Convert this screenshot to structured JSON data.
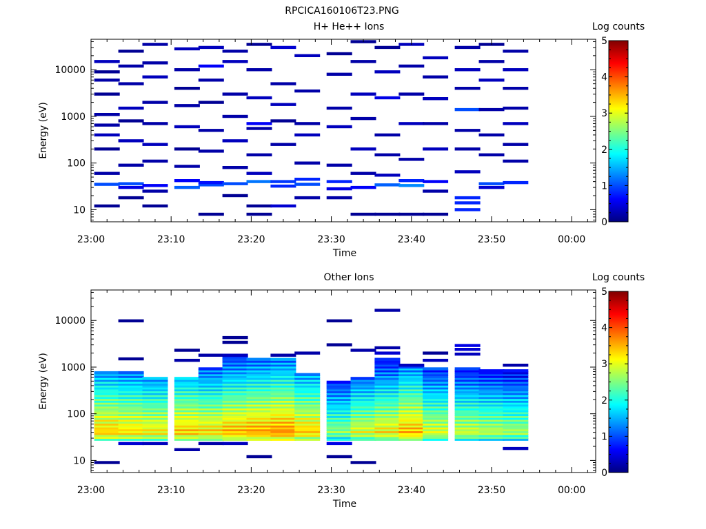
{
  "figure_title": "RPCICA160106T23.PNG",
  "chart_data": [
    {
      "type": "heatmap",
      "title": "H+ He++ Ions",
      "xlabel": "Time",
      "ylabel": "Energy (eV)",
      "y_scale": "log",
      "y_range": [
        5.5,
        45000
      ],
      "x_range": [
        "23:00",
        "00:03"
      ],
      "x_ticks": [
        "23:00",
        "23:10",
        "23:20",
        "23:30",
        "23:40",
        "23:50",
        "00:00"
      ],
      "y_ticks": [
        10,
        100,
        1000,
        10000
      ],
      "y_tick_labels": [
        "10",
        "100",
        "1000",
        "10000"
      ],
      "colorbar": {
        "label": "Log counts",
        "range": [
          0,
          5
        ],
        "ticks": [
          "0",
          "1",
          "2",
          "3",
          "4",
          "5"
        ]
      },
      "time_bins": [
        "23:02",
        "23:05",
        "23:08",
        "23:12",
        "23:15",
        "23:18",
        "23:21",
        "23:24",
        "23:27",
        "23:31",
        "23:34",
        "23:37",
        "23:40",
        "23:43",
        "23:47",
        "23:50",
        "23:53"
      ],
      "cells": [
        [
          0,
          12,
          0.1
        ],
        [
          0,
          35,
          1.0
        ],
        [
          0,
          60,
          0.2
        ],
        [
          0,
          200,
          0.1
        ],
        [
          0,
          400,
          0.3
        ],
        [
          0,
          650,
          0.2
        ],
        [
          0,
          1100,
          0.2
        ],
        [
          0,
          3000,
          0.1
        ],
        [
          0,
          6000,
          0.2
        ],
        [
          0,
          9000,
          0.1
        ],
        [
          0,
          15000,
          0.3
        ],
        [
          1,
          18,
          0.1
        ],
        [
          1,
          30,
          0.5
        ],
        [
          1,
          36,
          1.0
        ],
        [
          1,
          90,
          0.2
        ],
        [
          1,
          300,
          0.3
        ],
        [
          1,
          800,
          0.1
        ],
        [
          1,
          1500,
          0.3
        ],
        [
          1,
          5000,
          0.2
        ],
        [
          1,
          12000,
          0.2
        ],
        [
          1,
          25000,
          0.1
        ],
        [
          2,
          12,
          0.1
        ],
        [
          2,
          25,
          0.2
        ],
        [
          2,
          33,
          0.6
        ],
        [
          2,
          110,
          0.2
        ],
        [
          2,
          250,
          0.3
        ],
        [
          2,
          700,
          0.2
        ],
        [
          2,
          2000,
          0.2
        ],
        [
          2,
          7000,
          0.3
        ],
        [
          2,
          14000,
          0.2
        ],
        [
          2,
          35000,
          0.2
        ],
        [
          3,
          30,
          1.1
        ],
        [
          3,
          42,
          0.6
        ],
        [
          3,
          85,
          0.2
        ],
        [
          3,
          200,
          0.1
        ],
        [
          3,
          600,
          0.3
        ],
        [
          3,
          1700,
          0.2
        ],
        [
          3,
          4000,
          0.1
        ],
        [
          3,
          10000,
          0.2
        ],
        [
          3,
          28000,
          0.3
        ],
        [
          4,
          8,
          0.1
        ],
        [
          4,
          34,
          1.0
        ],
        [
          4,
          38,
          0.7
        ],
        [
          4,
          180,
          0.2
        ],
        [
          4,
          500,
          0.2
        ],
        [
          4,
          2000,
          0.1
        ],
        [
          4,
          6000,
          0.2
        ],
        [
          4,
          12000,
          0.6
        ],
        [
          4,
          30000,
          0.3
        ],
        [
          5,
          20,
          0.1
        ],
        [
          5,
          36,
          1.0
        ],
        [
          5,
          80,
          0.2
        ],
        [
          5,
          300,
          0.3
        ],
        [
          5,
          1000,
          0.2
        ],
        [
          5,
          3000,
          0.2
        ],
        [
          5,
          15000,
          0.3
        ],
        [
          5,
          25000,
          0.2
        ],
        [
          6,
          8,
          0.1
        ],
        [
          6,
          12,
          0.1
        ],
        [
          6,
          40,
          1.2
        ],
        [
          6,
          60,
          0.3
        ],
        [
          6,
          150,
          0.2
        ],
        [
          6,
          550,
          0.2
        ],
        [
          6,
          700,
          0.6
        ],
        [
          6,
          2500,
          0.3
        ],
        [
          6,
          10000,
          0.2
        ],
        [
          6,
          35000,
          0.1
        ],
        [
          7,
          12,
          0.4
        ],
        [
          7,
          32,
          0.8
        ],
        [
          7,
          40,
          0.9
        ],
        [
          7,
          250,
          0.2
        ],
        [
          7,
          800,
          0.1
        ],
        [
          7,
          1800,
          0.3
        ],
        [
          7,
          5000,
          0.2
        ],
        [
          7,
          30000,
          0.4
        ],
        [
          8,
          18,
          0.2
        ],
        [
          8,
          35,
          1.0
        ],
        [
          8,
          45,
          0.8
        ],
        [
          8,
          100,
          0.2
        ],
        [
          8,
          400,
          0.3
        ],
        [
          8,
          700,
          0.2
        ],
        [
          8,
          3500,
          0.2
        ],
        [
          8,
          20000,
          0.3
        ],
        [
          9,
          18,
          0.2
        ],
        [
          9,
          28,
          0.5
        ],
        [
          9,
          40,
          0.8
        ],
        [
          9,
          90,
          0.2
        ],
        [
          9,
          600,
          0.3
        ],
        [
          9,
          1500,
          0.2
        ],
        [
          9,
          8000,
          0.2
        ],
        [
          9,
          22000,
          0.1
        ],
        [
          10,
          8,
          0.1
        ],
        [
          10,
          30,
          0.6
        ],
        [
          10,
          60,
          0.2
        ],
        [
          10,
          200,
          0.3
        ],
        [
          10,
          900,
          0.2
        ],
        [
          10,
          3000,
          0.3
        ],
        [
          10,
          15000,
          0.2
        ],
        [
          10,
          40000,
          0.1
        ],
        [
          11,
          8,
          0.1
        ],
        [
          11,
          34,
          1.1
        ],
        [
          11,
          55,
          0.3
        ],
        [
          11,
          150,
          0.2
        ],
        [
          11,
          400,
          0.2
        ],
        [
          11,
          2500,
          0.5
        ],
        [
          11,
          9000,
          0.3
        ],
        [
          11,
          30000,
          0.1
        ],
        [
          12,
          8,
          0.1
        ],
        [
          12,
          33,
          1.3
        ],
        [
          12,
          42,
          0.8
        ],
        [
          12,
          120,
          0.2
        ],
        [
          12,
          700,
          0.3
        ],
        [
          12,
          3000,
          0.2
        ],
        [
          12,
          12000,
          0.2
        ],
        [
          12,
          35000,
          0.3
        ],
        [
          13,
          8,
          0.1
        ],
        [
          13,
          25,
          0.2
        ],
        [
          13,
          40,
          0.6
        ],
        [
          13,
          200,
          0.3
        ],
        [
          13,
          700,
          0.2
        ],
        [
          13,
          2400,
          0.3
        ],
        [
          13,
          7000,
          0.2
        ],
        [
          13,
          18000,
          0.3
        ],
        [
          14,
          10,
          0.8
        ],
        [
          14,
          14,
          0.8
        ],
        [
          14,
          18,
          0.8
        ],
        [
          14,
          65,
          0.3
        ],
        [
          14,
          200,
          0.2
        ],
        [
          14,
          500,
          0.2
        ],
        [
          14,
          1400,
          1.0
        ],
        [
          14,
          4000,
          0.2
        ],
        [
          14,
          10000,
          0.3
        ],
        [
          14,
          30000,
          0.2
        ],
        [
          15,
          30,
          0.4
        ],
        [
          15,
          36,
          1.0
        ],
        [
          15,
          150,
          0.2
        ],
        [
          15,
          400,
          0.2
        ],
        [
          15,
          1400,
          0.2
        ],
        [
          15,
          6000,
          0.3
        ],
        [
          15,
          15000,
          0.2
        ],
        [
          15,
          35000,
          0.1
        ],
        [
          16,
          38,
          0.8
        ],
        [
          16,
          110,
          0.2
        ],
        [
          16,
          250,
          0.2
        ],
        [
          16,
          700,
          0.3
        ],
        [
          16,
          1500,
          0.2
        ],
        [
          16,
          4000,
          0.2
        ],
        [
          16,
          10000,
          0.3
        ],
        [
          16,
          25000,
          0.2
        ]
      ]
    },
    {
      "type": "heatmap",
      "title": "Other Ions",
      "xlabel": "Time",
      "ylabel": "Energy (eV)",
      "y_scale": "log",
      "y_range": [
        5.5,
        45000
      ],
      "x_range": [
        "23:00",
        "00:03"
      ],
      "x_ticks": [
        "23:00",
        "23:10",
        "23:20",
        "23:30",
        "23:40",
        "23:50",
        "00:00"
      ],
      "y_ticks": [
        10,
        100,
        1000,
        10000
      ],
      "y_tick_labels": [
        "10",
        "100",
        "1000",
        "10000"
      ],
      "colorbar": {
        "label": "Log counts",
        "range": [
          0,
          5
        ],
        "ticks": [
          "0",
          "1",
          "2",
          "3",
          "4",
          "5"
        ]
      },
      "time_bins": [
        "23:02",
        "23:05",
        "23:08",
        "23:12",
        "23:15",
        "23:18",
        "23:21",
        "23:24",
        "23:27",
        "23:31",
        "23:34",
        "23:37",
        "23:40",
        "23:43",
        "23:47",
        "23:50",
        "23:53"
      ],
      "profile": [
        {
          "max_e": 800,
          "peak": 3.4
        },
        {
          "max_e": 800,
          "peak": 3.3
        },
        {
          "max_e": 600,
          "peak": 3.2
        },
        {
          "max_e": 600,
          "peak": 3.4
        },
        {
          "max_e": 1000,
          "peak": 3.3
        },
        {
          "max_e": 1800,
          "peak": 3.5
        },
        {
          "max_e": 1600,
          "peak": 3.6
        },
        {
          "max_e": 1500,
          "peak": 3.7
        },
        {
          "max_e": 700,
          "peak": 3.4
        },
        {
          "max_e": 500,
          "peak": 2.6
        },
        {
          "max_e": 600,
          "peak": 3.0
        },
        {
          "max_e": 1500,
          "peak": 3.2
        },
        {
          "max_e": 1100,
          "peak": 3.5
        },
        {
          "max_e": 1000,
          "peak": 3.0
        },
        {
          "max_e": 1000,
          "peak": 2.9
        },
        {
          "max_e": 900,
          "peak": 2.8
        },
        {
          "max_e": 900,
          "peak": 2.7
        }
      ],
      "cells": [
        [
          0,
          9,
          0.1
        ],
        [
          3,
          17,
          0.2
        ],
        [
          6,
          12,
          0.1
        ],
        [
          9,
          12,
          0.1
        ],
        [
          10,
          9,
          0.1
        ],
        [
          16,
          18,
          0.3
        ],
        [
          1,
          23,
          0.4
        ],
        [
          2,
          23,
          0.3
        ],
        [
          4,
          23,
          0.2
        ],
        [
          5,
          23,
          0.3
        ],
        [
          9,
          23,
          0.5
        ],
        [
          1,
          9800,
          0.1
        ],
        [
          1,
          1500,
          0.1
        ],
        [
          3,
          2300,
          0.1
        ],
        [
          3,
          1400,
          0.2
        ],
        [
          4,
          1800,
          0.2
        ],
        [
          5,
          4300,
          0.1
        ],
        [
          5,
          3400,
          0.1
        ],
        [
          5,
          1800,
          0.3
        ],
        [
          7,
          1800,
          0.2
        ],
        [
          8,
          2000,
          0.2
        ],
        [
          9,
          9800,
          0.1
        ],
        [
          9,
          3000,
          0.1
        ],
        [
          10,
          2300,
          0.2
        ],
        [
          11,
          16500,
          0.2
        ],
        [
          11,
          2600,
          0.2
        ],
        [
          11,
          2000,
          0.4
        ],
        [
          12,
          1100,
          0.3
        ],
        [
          13,
          2000,
          0.1
        ],
        [
          13,
          1400,
          0.3
        ],
        [
          14,
          2900,
          0.5
        ],
        [
          14,
          2400,
          0.4
        ],
        [
          14,
          1900,
          0.3
        ],
        [
          16,
          1100,
          0.2
        ]
      ]
    }
  ]
}
